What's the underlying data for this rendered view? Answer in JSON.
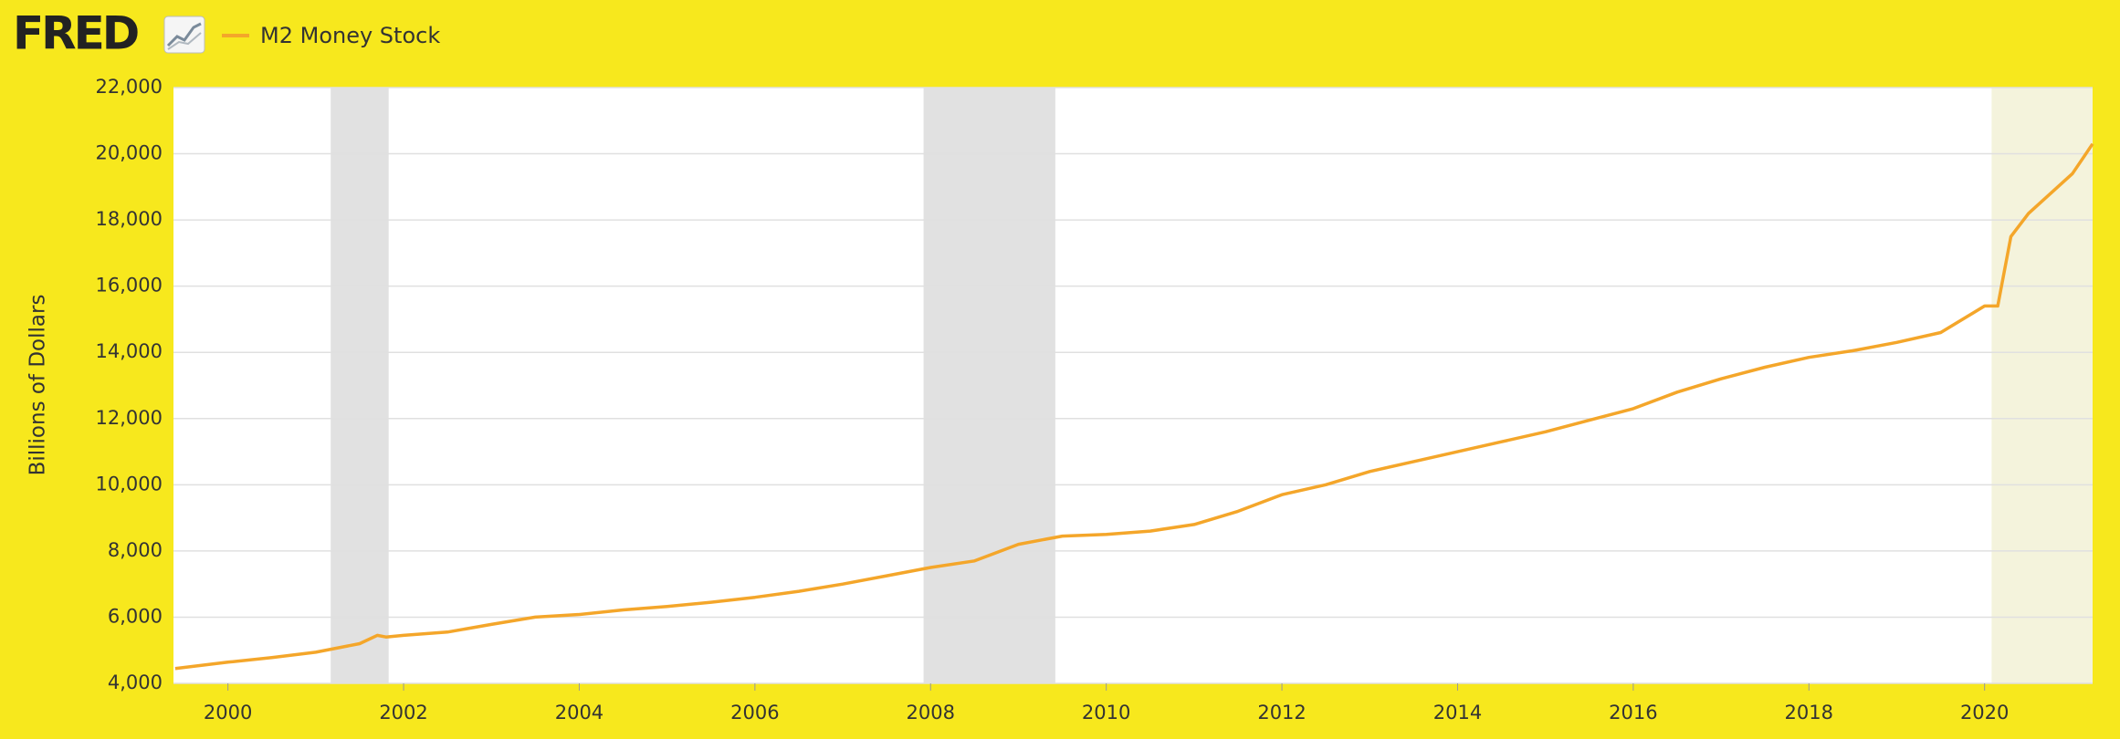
{
  "header": {
    "logo": "FRED"
  },
  "chart_data": {
    "type": "line",
    "y_label": "Billions of Dollars",
    "x": [
      1999.4,
      2000.0,
      2000.5,
      2001.0,
      2001.5,
      2001.7,
      2001.8,
      2002.0,
      2002.5,
      2003.0,
      2003.5,
      2004.0,
      2004.5,
      2005.0,
      2005.5,
      2006.0,
      2006.5,
      2007.0,
      2007.5,
      2008.0,
      2008.5,
      2009.0,
      2009.5,
      2010.0,
      2010.5,
      2011.0,
      2011.5,
      2012.0,
      2012.5,
      2013.0,
      2013.5,
      2014.0,
      2014.5,
      2015.0,
      2015.5,
      2016.0,
      2016.5,
      2017.0,
      2017.5,
      2018.0,
      2018.5,
      2019.0,
      2019.5,
      2020.0,
      2020.15,
      2020.3,
      2020.5,
      2021.0,
      2021.23
    ],
    "series": [
      {
        "name": "M2 Money Stock",
        "color": "#f4a62a",
        "values": [
          4450,
          4640,
          4780,
          4940,
          5200,
          5450,
          5400,
          5450,
          5550,
          5780,
          6000,
          6080,
          6220,
          6320,
          6450,
          6600,
          6780,
          7000,
          7250,
          7500,
          7700,
          8200,
          8450,
          8500,
          8600,
          8800,
          9200,
          9700,
          10000,
          10400,
          10700,
          11000,
          11300,
          11600,
          11950,
          12300,
          12800,
          13200,
          13550,
          13850,
          14050,
          14300,
          14600,
          15400,
          15400,
          17500,
          18200,
          19400,
          20300
        ]
      }
    ],
    "xlim": [
      1999.38,
      2021.23
    ],
    "xticks": [
      2000,
      2002,
      2004,
      2006,
      2008,
      2010,
      2012,
      2014,
      2016,
      2018,
      2020
    ],
    "ylim": [
      4000,
      22000
    ],
    "yticks": [
      {
        "value": 4000,
        "label": "4,000"
      },
      {
        "value": 6000,
        "label": "6,000"
      },
      {
        "value": 8000,
        "label": "8,000"
      },
      {
        "value": 10000,
        "label": "10,000"
      },
      {
        "value": 12000,
        "label": "12,000"
      },
      {
        "value": 14000,
        "label": "14,000"
      },
      {
        "value": 16000,
        "label": "16,000"
      },
      {
        "value": 18000,
        "label": "18,000"
      },
      {
        "value": 20000,
        "label": "20,000"
      },
      {
        "value": 22000,
        "label": "22,000"
      }
    ],
    "grid": true,
    "recessions": [
      {
        "start": 2001.17,
        "end": 2001.83,
        "color": "#e1e1e1"
      },
      {
        "start": 2007.92,
        "end": 2009.42,
        "color": "#e1e1e1"
      },
      {
        "start": 2020.08,
        "end": 2021.23,
        "color": "#f4f3dc"
      }
    ]
  }
}
